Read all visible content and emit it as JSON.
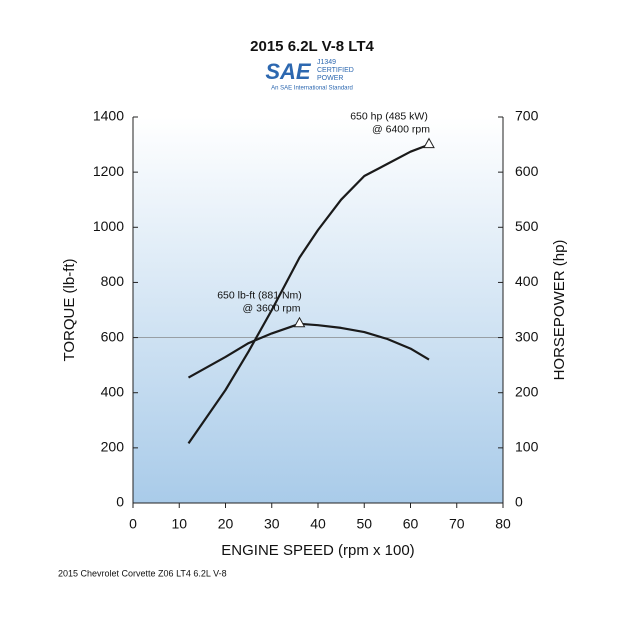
{
  "chart_data": {
    "type": "line",
    "title": "2015 6.2L V-8 LT4",
    "logo": {
      "mark": "SAE",
      "lines": [
        "J1349",
        "CERTIFIED",
        "POWER"
      ],
      "tagline": "An SAE International Standard"
    },
    "x_label": "ENGINE SPEED (rpm x 100)",
    "y_label": "TORQUE (lb-ft)",
    "y2_label": "HORSEPOWER (hp)",
    "footnote": "2015 Chevrolet Corvette Z06 LT4 6.2L V-8",
    "x": [
      12,
      20,
      25,
      30,
      36,
      40,
      45,
      50,
      55,
      60,
      64
    ],
    "series": [
      {
        "name": "Torque",
        "color": "#1a1a1a",
        "values": [
          455,
          530,
          580,
          615,
          650,
          645,
          635,
          620,
          595,
          560,
          520
        ],
        "peak_label": [
          "650 lb-ft (881 Nm)",
          "@ 3600 rpm"
        ]
      },
      {
        "name": "Horsepower",
        "color": "#1a1a1a",
        "axis": "y2",
        "values": [
          108,
          205,
          275,
          350,
          445,
          495,
          550,
          593,
          615,
          637,
          650
        ],
        "peak_label": [
          "650 hp (485 kW)",
          "@ 6400 rpm"
        ]
      }
    ],
    "xlim": [
      0,
      80
    ],
    "xticks": [
      0,
      10,
      20,
      30,
      40,
      50,
      60,
      70,
      80
    ],
    "ylim": [
      0,
      1400
    ],
    "yticks": [
      0,
      200,
      400,
      600,
      800,
      1000,
      1200,
      1400
    ],
    "y2lim": [
      0,
      700
    ],
    "y2ticks": [
      0,
      100,
      200,
      300,
      400,
      500,
      600,
      700
    ],
    "reference_line": 600
  }
}
